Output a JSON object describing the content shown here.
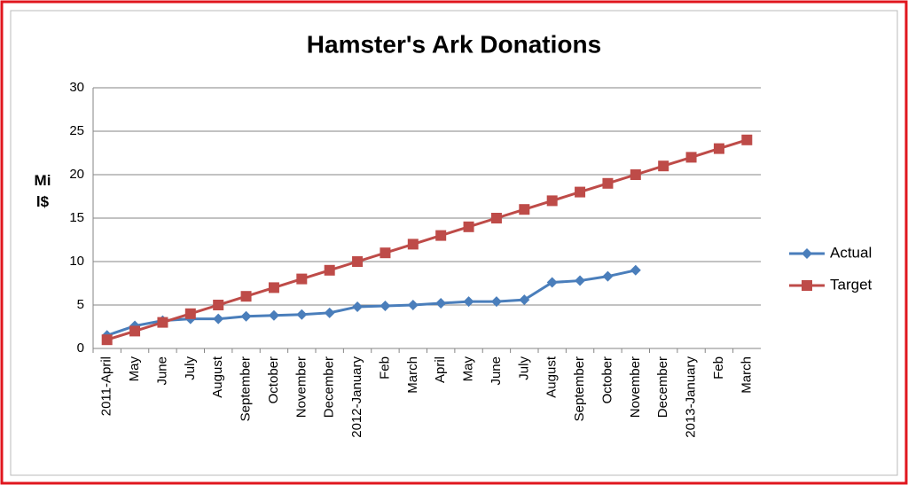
{
  "chart_data": {
    "type": "line",
    "title": "Hamster's Ark Donations",
    "y_label": "Mil$",
    "categories": [
      "2011-April",
      "May",
      "June",
      "July",
      "August",
      "September",
      "October",
      "November",
      "December",
      "2012-January",
      "Feb",
      "March",
      "April",
      "May",
      "June",
      "July",
      "August",
      "September",
      "October",
      "November",
      "December",
      "2013-January",
      "Feb",
      "March"
    ],
    "series": [
      {
        "name": "Actual",
        "color": "#4a7ebb",
        "marker": "diamond",
        "values": [
          1.5,
          2.6,
          3.2,
          3.4,
          3.4,
          3.7,
          3.8,
          3.9,
          4.1,
          4.8,
          4.9,
          5.0,
          5.2,
          5.4,
          5.4,
          5.6,
          7.6,
          7.8,
          8.3,
          9.0,
          null,
          null,
          null,
          null
        ]
      },
      {
        "name": "Target",
        "color": "#be4b48",
        "marker": "square",
        "values": [
          1,
          2,
          3,
          4,
          5,
          6,
          7,
          8,
          9,
          10,
          11,
          12,
          13,
          14,
          15,
          16,
          17,
          18,
          19,
          20,
          21,
          22,
          23,
          24
        ]
      }
    ],
    "ylim": [
      0,
      30
    ],
    "yticks": [
      0,
      5,
      10,
      15,
      20,
      25,
      30
    ],
    "grid": true,
    "legend": "right"
  }
}
